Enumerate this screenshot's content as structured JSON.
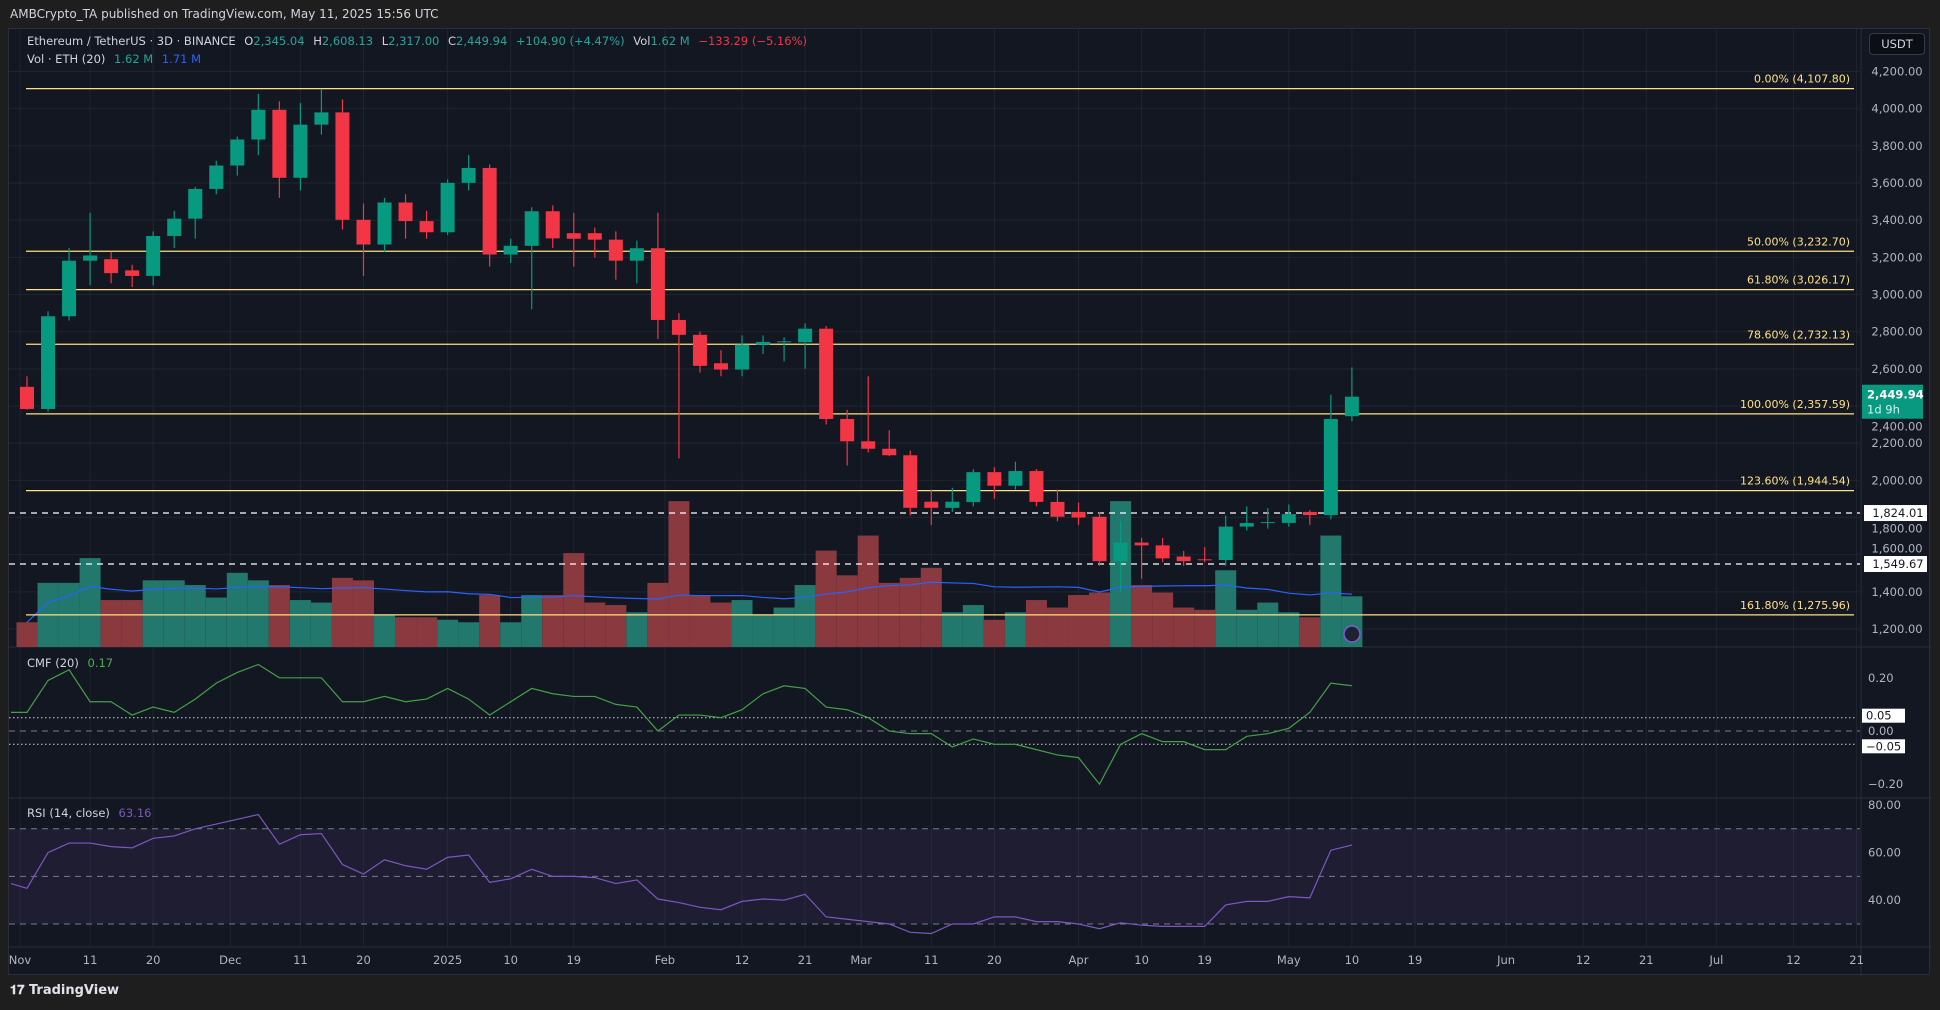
{
  "header": {
    "published": "AMBCrypto_TA published on TradingView.com, May 11, 2025 15:56 UTC"
  },
  "legend": {
    "symbol": "Ethereum / TetherUS · 3D · BINANCE",
    "o_label": "O",
    "o": "2,345.04",
    "h_label": "H",
    "h": "2,608.13",
    "l_label": "L",
    "l": "2,317.00",
    "c_label": "C",
    "c": "2,449.94",
    "change": "+104.90 (+4.47%)",
    "vol_label": "Vol",
    "vol": "1.62 M",
    "vol_change": "−133.29 (−5.16%)",
    "vol_ind": "Vol · ETH (20)",
    "vol_val": "1.62 M",
    "vol_ma": "1.71 M",
    "cmf_label": "CMF (20)",
    "cmf_val": "0.17",
    "rsi_label": "RSI (14, close)",
    "rsi_val": "63.16"
  },
  "currency": "USDT",
  "footer": {
    "logo": "TradingView"
  },
  "colors": {
    "up": "#089981",
    "down": "#f23645",
    "fib": "#ffe082",
    "cmf": "#43a047",
    "rsi": "#7e57c2",
    "vol_ma": "#2962ff",
    "badge": "#089981"
  },
  "chart_data": {
    "type": "candlestick",
    "price_ticks": [
      "4,200.00",
      "4,000.00",
      "3,800.00",
      "3,600.00",
      "3,400.00",
      "3,200.00",
      "3,000.00",
      "2,800.00",
      "2,600.00",
      "2,400.00",
      "2,200.00",
      "2,000.00",
      "1,800.00",
      "1,600.00",
      "1,400.00",
      "1,200.00"
    ],
    "price_tick_values": [
      4200,
      4000,
      3800,
      3600,
      3400,
      3200,
      3000,
      2800,
      2600,
      2400,
      2200,
      2000,
      1800,
      1600,
      1400,
      1200
    ],
    "ylim": [
      1200,
      4200
    ],
    "fib_levels": [
      {
        "label": "0.00% (4,107.80)",
        "value": 4107.8
      },
      {
        "label": "50.00% (3,232.70)",
        "value": 3232.7
      },
      {
        "label": "61.80% (3,026.17)",
        "value": 3026.17
      },
      {
        "label": "78.60% (2,732.13)",
        "value": 2732.13
      },
      {
        "label": "100.00% (2,357.59)",
        "value": 2357.59
      },
      {
        "label": "123.60% (1,944.54)",
        "value": 1944.54
      },
      {
        "label": "161.80% (1,275.96)",
        "value": 1275.96
      }
    ],
    "h_lines": [
      {
        "label": "1,824.01",
        "value": 1824.01
      },
      {
        "label": "1,549.67",
        "value": 1549.67
      }
    ],
    "last_price": {
      "label": "2,449.94",
      "countdown": "1d 9h",
      "value": 2449.94
    },
    "time_labels": [
      [
        "Nov",
        "2024-11-01"
      ],
      [
        "11",
        "2024-11-11"
      ],
      [
        "20",
        "2024-11-20"
      ],
      [
        "Dec",
        "2024-12-01"
      ],
      [
        "11",
        "2024-12-11"
      ],
      [
        "20",
        "2024-12-20"
      ],
      [
        "2025",
        "2025-01-01"
      ],
      [
        "10",
        "2025-01-10"
      ],
      [
        "19",
        "2025-01-19"
      ],
      [
        "Feb",
        "2025-02-01"
      ],
      [
        "12",
        "2025-02-12"
      ],
      [
        "21",
        "2025-02-21"
      ],
      [
        "Mar",
        "2025-03-01"
      ],
      [
        "11",
        "2025-03-11"
      ],
      [
        "20",
        "2025-03-20"
      ],
      [
        "Apr",
        "2025-04-01"
      ],
      [
        "10",
        "2025-04-10"
      ],
      [
        "19",
        "2025-04-19"
      ],
      [
        "May",
        "2025-05-01"
      ],
      [
        "10",
        "2025-05-10"
      ],
      [
        "19",
        "2025-05-19"
      ],
      [
        "Jun",
        "2025-06-01"
      ],
      [
        "12",
        "2025-06-12"
      ],
      [
        "21",
        "2025-06-21"
      ],
      [
        "Jul",
        "2025-07-01"
      ],
      [
        "12",
        "2025-07-12"
      ],
      [
        "21",
        "2025-07-21"
      ]
    ],
    "candles_columns": [
      "date",
      "open",
      "high",
      "low",
      "close",
      "volume_M"
    ],
    "candles": [
      [
        "2024-11-02",
        2503,
        2560,
        2380,
        2384,
        0.79
      ],
      [
        "2024-11-05",
        2384,
        2910,
        2370,
        2883,
        2.05
      ],
      [
        "2024-11-08",
        2883,
        3250,
        2860,
        3182,
        2.05
      ],
      [
        "2024-11-11",
        3182,
        3440,
        3050,
        3210,
        2.84
      ],
      [
        "2024-11-14",
        3190,
        3230,
        3060,
        3115,
        1.5
      ],
      [
        "2024-11-17",
        3130,
        3160,
        3040,
        3100,
        1.5
      ],
      [
        "2024-11-20",
        3100,
        3340,
        3050,
        3315,
        2.13
      ],
      [
        "2024-11-23",
        3315,
        3450,
        3250,
        3408,
        2.13
      ],
      [
        "2024-11-26",
        3408,
        3580,
        3300,
        3568,
        1.98
      ],
      [
        "2024-11-29",
        3568,
        3720,
        3540,
        3694,
        1.58
      ],
      [
        "2024-12-02",
        3694,
        3850,
        3640,
        3834,
        2.37
      ],
      [
        "2024-12-05",
        3834,
        4080,
        3750,
        3994,
        2.13
      ],
      [
        "2024-12-08",
        3994,
        4040,
        3520,
        3628,
        1.98
      ],
      [
        "2024-12-11",
        3628,
        4030,
        3560,
        3914,
        1.5
      ],
      [
        "2024-12-14",
        3914,
        4107,
        3860,
        3980,
        1.42
      ],
      [
        "2024-12-17",
        3980,
        4050,
        3350,
        3402,
        2.21
      ],
      [
        "2024-12-20",
        3402,
        3490,
        3100,
        3269,
        2.13
      ],
      [
        "2024-12-23",
        3269,
        3520,
        3230,
        3495,
        1.03
      ],
      [
        "2024-12-26",
        3495,
        3540,
        3300,
        3395,
        0.95
      ],
      [
        "2024-12-29",
        3395,
        3450,
        3300,
        3335,
        0.95
      ],
      [
        "2025-01-01",
        3335,
        3620,
        3320,
        3601,
        0.87
      ],
      [
        "2025-01-04",
        3601,
        3750,
        3560,
        3681,
        0.79
      ],
      [
        "2025-01-07",
        3681,
        3700,
        3150,
        3215,
        1.66
      ],
      [
        "2025-01-10",
        3215,
        3300,
        3170,
        3262,
        0.79
      ],
      [
        "2025-01-13",
        3262,
        3470,
        2920,
        3448,
        1.66
      ],
      [
        "2025-01-16",
        3448,
        3480,
        3250,
        3302,
        1.66
      ],
      [
        "2025-01-19",
        3330,
        3440,
        3150,
        3300,
        3.0
      ],
      [
        "2025-01-22",
        3330,
        3360,
        3200,
        3295,
        1.42
      ],
      [
        "2025-01-25",
        3295,
        3340,
        3080,
        3182,
        1.34
      ],
      [
        "2025-01-28",
        3182,
        3290,
        3060,
        3249,
        1.11
      ],
      [
        "2025-01-31",
        3249,
        3440,
        2760,
        2863,
        2.05
      ],
      [
        "2025-02-03",
        2863,
        2900,
        2118,
        2783,
        4.66
      ],
      [
        "2025-02-06",
        2783,
        2800,
        2580,
        2616,
        1.66
      ],
      [
        "2025-02-09",
        2630,
        2700,
        2560,
        2596,
        1.42
      ],
      [
        "2025-02-12",
        2596,
        2780,
        2560,
        2730,
        1.5
      ],
      [
        "2025-02-15",
        2730,
        2780,
        2680,
        2745,
        1.03
      ],
      [
        "2025-02-18",
        2743,
        2770,
        2640,
        2748,
        1.26
      ],
      [
        "2025-02-21",
        2743,
        2845,
        2600,
        2816,
        1.98
      ],
      [
        "2025-02-24",
        2816,
        2830,
        2300,
        2330,
        3.08
      ],
      [
        "2025-02-27",
        2330,
        2380,
        2080,
        2210,
        2.29
      ],
      [
        "2025-03-02",
        2210,
        2560,
        2150,
        2170,
        3.56
      ],
      [
        "2025-03-05",
        2170,
        2270,
        2130,
        2135,
        2.05
      ],
      [
        "2025-03-08",
        2135,
        2160,
        1810,
        1852,
        2.21
      ],
      [
        "2025-03-11",
        1885,
        1950,
        1760,
        1852,
        2.53
      ],
      [
        "2025-03-14",
        1852,
        1960,
        1830,
        1885,
        1.11
      ],
      [
        "2025-03-17",
        1883,
        2060,
        1860,
        2044,
        1.34
      ],
      [
        "2025-03-20",
        2044,
        2070,
        1900,
        1971,
        0.87
      ],
      [
        "2025-03-23",
        1971,
        2100,
        1950,
        2050,
        1.11
      ],
      [
        "2025-03-26",
        2050,
        2060,
        1860,
        1884,
        1.5
      ],
      [
        "2025-03-29",
        1884,
        1950,
        1780,
        1804,
        1.26
      ],
      [
        "2025-04-01",
        1830,
        1880,
        1760,
        1800,
        1.66
      ],
      [
        "2025-04-04",
        1804,
        1830,
        1540,
        1565,
        1.74
      ],
      [
        "2025-04-07",
        1565,
        1780,
        1400,
        1665,
        4.66
      ],
      [
        "2025-04-10",
        1665,
        1690,
        1470,
        1650,
        1.98
      ],
      [
        "2025-04-13",
        1650,
        1690,
        1560,
        1580,
        1.74
      ],
      [
        "2025-04-16",
        1590,
        1620,
        1540,
        1565,
        1.26
      ],
      [
        "2025-04-19",
        1575,
        1640,
        1560,
        1570,
        1.19
      ],
      [
        "2025-04-22",
        1571,
        1810,
        1540,
        1751,
        2.45
      ],
      [
        "2025-04-25",
        1751,
        1860,
        1730,
        1770,
        1.19
      ],
      [
        "2025-04-28",
        1770,
        1850,
        1740,
        1775,
        1.42
      ],
      [
        "2025-05-01",
        1771,
        1870,
        1750,
        1818,
        1.11
      ],
      [
        "2025-05-04",
        1830,
        1840,
        1760,
        1813,
        0.95
      ],
      [
        "2025-05-07",
        1813,
        2460,
        1790,
        2330,
        3.56
      ],
      [
        "2025-05-10",
        2345.04,
        2608.13,
        2317.0,
        2449.94,
        1.62
      ]
    ],
    "cmf": {
      "ticks": [
        "0.20",
        "0.00",
        "−0.20"
      ],
      "tick_values": [
        0.2,
        0,
        -0.2
      ],
      "levels": [
        {
          "label": "0.05",
          "value": 0.05
        },
        {
          "label": "−0.05",
          "value": -0.05
        }
      ],
      "values": [
        0.07,
        0.19,
        0.23,
        0.11,
        0.11,
        0.06,
        0.09,
        0.07,
        0.12,
        0.18,
        0.22,
        0.25,
        0.2,
        0.2,
        0.2,
        0.11,
        0.11,
        0.13,
        0.11,
        0.12,
        0.16,
        0.12,
        0.06,
        0.11,
        0.16,
        0.14,
        0.13,
        0.13,
        0.1,
        0.09,
        0.0,
        0.06,
        0.06,
        0.05,
        0.08,
        0.14,
        0.17,
        0.16,
        0.09,
        0.08,
        0.05,
        0.0,
        -0.01,
        -0.01,
        -0.06,
        -0.03,
        -0.05,
        -0.05,
        -0.07,
        -0.09,
        -0.1,
        -0.2,
        -0.05,
        -0.01,
        -0.04,
        -0.04,
        -0.07,
        -0.07,
        -0.02,
        -0.01,
        0.01,
        0.07,
        0.18,
        0.17
      ]
    },
    "rsi": {
      "ticks": [
        "80.00",
        "60.00",
        "40.00"
      ],
      "tick_values": [
        80,
        60,
        40
      ],
      "band": [
        30,
        70
      ],
      "mid": 50,
      "values": [
        45,
        60,
        64,
        64,
        62.5,
        62,
        66,
        67,
        70,
        72,
        74,
        76,
        63.5,
        67.5,
        68,
        55,
        51,
        57,
        54.5,
        53,
        58,
        59,
        47.5,
        49,
        53,
        50,
        50,
        49.5,
        47,
        48.5,
        40.5,
        39,
        37,
        36,
        39.5,
        40.5,
        40,
        42.5,
        33,
        32,
        31,
        30,
        26.5,
        26,
        30,
        30,
        33,
        33,
        31,
        31,
        30,
        28,
        30.5,
        29.5,
        29,
        29,
        29,
        38,
        39.5,
        39.5,
        41.5,
        41,
        61,
        63.16
      ]
    }
  }
}
